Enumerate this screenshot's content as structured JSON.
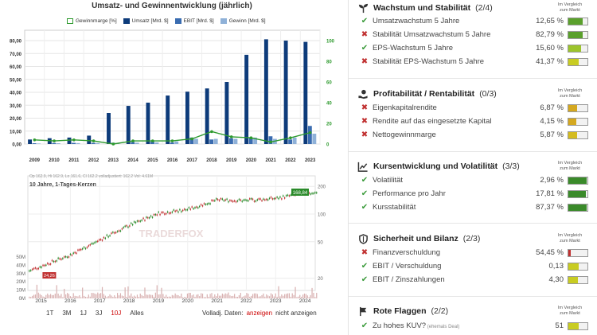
{
  "chart1": {
    "title": "Umsatz- und Gewinnentwicklung (jährlich)",
    "legend": {
      "margin": "Gewinnmarge [%]",
      "revenue": "Umsatz [Mrd. $]",
      "ebit": "EBIT [Mrd. $]",
      "profit": "Gewinn [Mrd. $]"
    }
  },
  "chart2": {
    "info": "Op 162.9, Hi 162.9, Lo 161.6, Cl 162.2   volladjustiert: 162.2   Vol: 4.61M",
    "title": "10 Jahre, 1-Tages-Kerzen",
    "last_label": "168,84",
    "low_label": "24,26",
    "watermark": "TRADERFOX"
  },
  "periods": [
    "1T",
    "3M",
    "1J",
    "3J",
    "10J",
    "Alles"
  ],
  "active_period": "10J",
  "volladj": {
    "label": "Volladj. Daten:",
    "show": "anzeigen",
    "hide": "nicht anzeigen"
  },
  "chart_data": [
    {
      "type": "bar",
      "title": "Umsatz- und Gewinnentwicklung (jährlich)",
      "categories": [
        "2009",
        "2010",
        "2011",
        "2012",
        "2013",
        "2014",
        "2015",
        "2016",
        "2017",
        "2018",
        "2019",
        "2020",
        "2021",
        "2022",
        "2023"
      ],
      "series": [
        {
          "name": "Umsatz [Mrd. $]",
          "axis": "left",
          "values": [
            3.5,
            4.5,
            5.0,
            6.5,
            24.0,
            29.5,
            32.0,
            37.5,
            40.5,
            43.0,
            48.0,
            69.0,
            81.0,
            80.0,
            79.0
          ]
        },
        {
          "name": "EBIT [Mrd. $]",
          "axis": "left",
          "values": [
            0.6,
            0.8,
            0.9,
            0.9,
            1.0,
            1.5,
            1.8,
            1.2,
            5.0,
            3.5,
            4.5,
            5.0,
            6.0,
            3.5,
            14.0
          ]
        },
        {
          "name": "Gewinn [Mrd. $]",
          "axis": "left",
          "values": [
            0.4,
            0.6,
            0.7,
            0.7,
            0.4,
            1.0,
            1.2,
            2.0,
            4.0,
            4.0,
            4.0,
            5.0,
            4.0,
            5.0,
            8.0
          ]
        },
        {
          "name": "Gewinnmarge [%]",
          "type": "line",
          "axis": "right",
          "values": [
            4,
            3,
            4,
            3,
            0,
            3,
            3,
            3,
            5,
            12,
            7,
            6,
            2,
            6,
            11
          ]
        }
      ],
      "ylim": [
        0,
        88
      ],
      "ylim_right": [
        0,
        100
      ],
      "yticks": [
        "0,00",
        "10,00",
        "20,00",
        "30,00",
        "40,00",
        "50,00",
        "60,00",
        "70,00",
        "80,00"
      ],
      "yticks_right": [
        "0",
        "20",
        "40",
        "60",
        "80",
        "100"
      ],
      "colors": {
        "revenue": "#0d3b7a",
        "ebit": "#3a6cb0",
        "profit": "#8fb1d8",
        "margin": "#2e9a2e"
      },
      "grid": true,
      "legend_position": "top"
    },
    {
      "type": "line",
      "title": "10 Jahre, 1-Tages-Kerzen",
      "x": [
        2015,
        2016,
        2017,
        2018,
        2019,
        2020,
        2021,
        2022,
        2023,
        2024
      ],
      "y": [
        27,
        36,
        52,
        75,
        102,
        112,
        142,
        140,
        148,
        168
      ],
      "xticks": [
        "2015",
        "2016",
        "2017",
        "2018",
        "2019",
        "2020",
        "2021",
        "2022",
        "2023",
        "2024"
      ],
      "yticks_right": [
        "20",
        "50",
        "100",
        "200"
      ],
      "yticks_volume": [
        "0M",
        "10M",
        "20M",
        "30M",
        "40M",
        "50M"
      ],
      "scale": "log",
      "colors": {
        "up": "#2a8a2a",
        "down": "#c03030",
        "volume": "#d8b0b0"
      }
    }
  ],
  "sections": [
    {
      "title": "Wachstum und Stabilität",
      "count": "(2/4)",
      "icon": "sprout-icon",
      "compare": [
        "Im Vergleich",
        "zum Markt"
      ],
      "rows": [
        {
          "status": "ok",
          "label": "Umsatzwachstum 5 Jahre",
          "value": "12,65 %",
          "bar_color": "#5aa02c",
          "fill": 0.75
        },
        {
          "status": "no",
          "label": "Stabilität Umsatzwachstum 5 Jahre",
          "value": "82,79 %",
          "bar_color": "#5aa02c",
          "fill": 0.75
        },
        {
          "status": "ok",
          "label": "EPS-Wachstum 5 Jahre",
          "value": "15,60 %",
          "bar_color": "#9cc42c",
          "fill": 0.65
        },
        {
          "status": "no",
          "label": "Stabilität EPS-Wachstum 5 Jahre",
          "value": "41,37 %",
          "bar_color": "#c8cc22",
          "fill": 0.55
        }
      ]
    },
    {
      "title": "Profitabilität / Rentabilität",
      "count": "(0/3)",
      "icon": "hand-money-icon",
      "compare": [
        "Im Vergleich",
        "zum Markt"
      ],
      "rows": [
        {
          "status": "no",
          "label": "Eigenkapitalrendite",
          "value": "6,87 %",
          "bar_color": "#d4a820",
          "fill": 0.45
        },
        {
          "status": "no",
          "label": "Rendite auf das eingesetzte Kapital",
          "value": "4,15 %",
          "bar_color": "#d4a820",
          "fill": 0.4
        },
        {
          "status": "no",
          "label": "Nettogewinnmarge",
          "value": "5,87 %",
          "bar_color": "#d4bc20",
          "fill": 0.45
        }
      ]
    },
    {
      "title": "Kursentwicklung und Volatilität",
      "count": "(3/3)",
      "icon": "chart-icon",
      "compare": [
        "Im Vergleich",
        "zum Markt"
      ],
      "rows": [
        {
          "status": "ok",
          "label": "Volatilität",
          "value": "2,96 %",
          "bar_color": "#3a8a2a",
          "fill": 0.95
        },
        {
          "status": "ok",
          "label": "Performance pro Jahr",
          "value": "17,81 %",
          "bar_color": "#3a8a2a",
          "fill": 0.9
        },
        {
          "status": "ok",
          "label": "Kursstabilität",
          "value": "87,37 %",
          "bar_color": "#3a8a2a",
          "fill": 0.95
        }
      ]
    },
    {
      "title": "Sicherheit und Bilanz",
      "count": "(2/3)",
      "icon": "shield-icon",
      "compare": [
        "Im Vergleich",
        "zum Markt"
      ],
      "rows": [
        {
          "status": "no",
          "label": "Finanzverschuldung",
          "value": "54,45 %",
          "bar_color": "#c03030",
          "fill": 0.12
        },
        {
          "status": "ok",
          "label": "EBIT / Verschuldung",
          "value": "0,13",
          "bar_color": "#c8cc22",
          "fill": 0.55
        },
        {
          "status": "ok",
          "label": "EBIT / Zinszahlungen",
          "value": "4,30",
          "bar_color": "#c8cc22",
          "fill": 0.5
        }
      ]
    },
    {
      "title": "Rote Flaggen",
      "count": "(2/2)",
      "icon": "flag-icon",
      "compare": [
        "Im Vergleich",
        "zum Markt"
      ],
      "rows": [
        {
          "status": "ok",
          "label": "Zu hohes KUV?",
          "note": "(ehemals Deal)",
          "value": "51",
          "bar_color": "#c8cc22",
          "fill": 0.55
        }
      ]
    }
  ]
}
